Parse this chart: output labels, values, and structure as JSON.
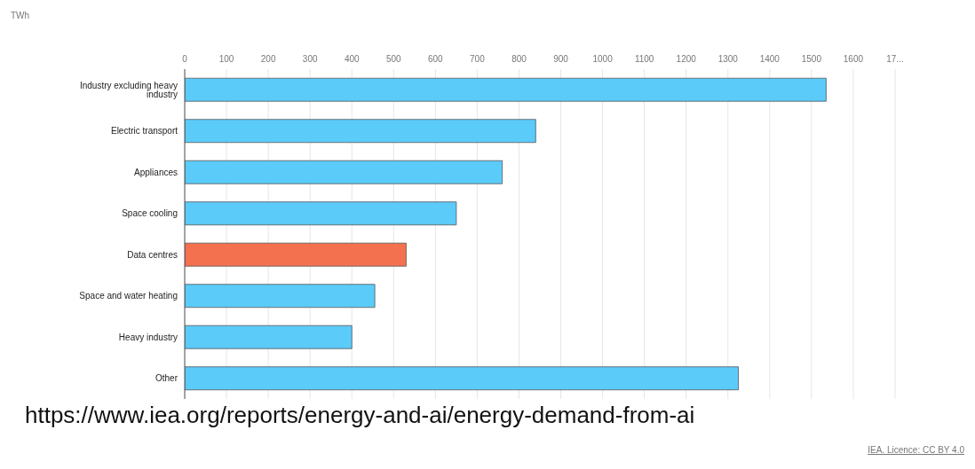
{
  "chart_data": {
    "type": "bar",
    "orientation": "horizontal",
    "categories": [
      "Industry excluding heavy industry",
      "Electric transport",
      "Appliances",
      "Space cooling",
      "Data centres",
      "Space and water heating",
      "Heavy industry",
      "Other"
    ],
    "values": [
      1535,
      840,
      760,
      650,
      530,
      455,
      400,
      1325
    ],
    "colors": [
      "#5bcbfa",
      "#5bcbfa",
      "#5bcbfa",
      "#5bcbfa",
      "#f4714f",
      "#5bcbfa",
      "#5bcbfa",
      "#5bcbfa"
    ],
    "xlim": [
      0,
      1700
    ],
    "xticks": [
      0,
      100,
      200,
      300,
      400,
      500,
      600,
      700,
      800,
      900,
      1000,
      1100,
      1200,
      1300,
      1400,
      1500,
      1600,
      {
        "value": 1700,
        "label": "17..."
      }
    ],
    "grid": "x",
    "annotations": [
      "TWh",
      "https://www.iea.org/reports/energy-and-ai/energy-demand-from-ai",
      "IEA. Licence: CC BY 4.0"
    ]
  }
}
